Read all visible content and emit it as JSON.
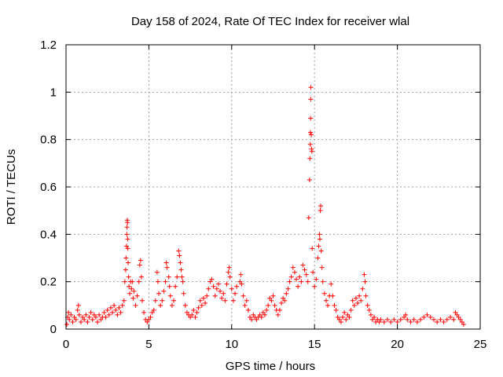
{
  "chart_data": {
    "type": "scatter",
    "title": "Day 158 of 2024, Rate Of TEC Index for receiver wlal",
    "xlabel": "GPS time / hours",
    "ylabel": "ROTI / TECUs",
    "xlim": [
      0,
      25
    ],
    "ylim": [
      0,
      1.2
    ],
    "grid": true,
    "marker": "+",
    "color": "#ff0000",
    "x_ticks": [
      {
        "value": 0,
        "label": "0"
      },
      {
        "value": 5,
        "label": "5"
      },
      {
        "value": 10,
        "label": "10"
      },
      {
        "value": 15,
        "label": "15"
      },
      {
        "value": 20,
        "label": "20"
      },
      {
        "value": 25,
        "label": "25"
      }
    ],
    "y_ticks": [
      {
        "value": 0,
        "label": "0"
      },
      {
        "value": 0.2,
        "label": "0.2"
      },
      {
        "value": 0.4,
        "label": "0.4"
      },
      {
        "value": 0.6,
        "label": "0.6"
      },
      {
        "value": 0.8,
        "label": "0.8"
      },
      {
        "value": 1.0,
        "label": "1"
      },
      {
        "value": 1.2,
        "label": "1.2"
      }
    ],
    "series": [
      {
        "name": "ROTI",
        "points": [
          [
            0.05,
            0.02
          ],
          [
            0.1,
            0.05
          ],
          [
            0.15,
            0.07
          ],
          [
            0.2,
            0.04
          ],
          [
            0.3,
            0.06
          ],
          [
            0.4,
            0.03
          ],
          [
            0.5,
            0.05
          ],
          [
            0.6,
            0.04
          ],
          [
            0.7,
            0.08
          ],
          [
            0.75,
            0.1
          ],
          [
            0.8,
            0.06
          ],
          [
            0.9,
            0.03
          ],
          [
            1.0,
            0.05
          ],
          [
            1.1,
            0.04
          ],
          [
            1.2,
            0.06
          ],
          [
            1.3,
            0.03
          ],
          [
            1.4,
            0.05
          ],
          [
            1.5,
            0.07
          ],
          [
            1.6,
            0.04
          ],
          [
            1.7,
            0.06
          ],
          [
            1.8,
            0.05
          ],
          [
            1.9,
            0.03
          ],
          [
            2.0,
            0.06
          ],
          [
            2.1,
            0.04
          ],
          [
            2.2,
            0.05
          ],
          [
            2.3,
            0.07
          ],
          [
            2.4,
            0.05
          ],
          [
            2.5,
            0.08
          ],
          [
            2.6,
            0.06
          ],
          [
            2.7,
            0.09
          ],
          [
            2.8,
            0.07
          ],
          [
            2.9,
            0.1
          ],
          [
            3.0,
            0.08
          ],
          [
            3.1,
            0.06
          ],
          [
            3.2,
            0.09
          ],
          [
            3.3,
            0.07
          ],
          [
            3.4,
            0.1
          ],
          [
            3.5,
            0.12
          ],
          [
            3.55,
            0.2
          ],
          [
            3.6,
            0.25
          ],
          [
            3.62,
            0.3
          ],
          [
            3.65,
            0.35
          ],
          [
            3.67,
            0.4
          ],
          [
            3.68,
            0.43
          ],
          [
            3.7,
            0.46
          ],
          [
            3.71,
            0.45
          ],
          [
            3.72,
            0.38
          ],
          [
            3.73,
            0.34
          ],
          [
            3.75,
            0.28
          ],
          [
            3.78,
            0.22
          ],
          [
            3.8,
            0.18
          ],
          [
            3.85,
            0.15
          ],
          [
            3.9,
            0.2
          ],
          [
            3.95,
            0.17
          ],
          [
            4.0,
            0.2
          ],
          [
            4.05,
            0.13
          ],
          [
            4.1,
            0.16
          ],
          [
            4.2,
            0.1
          ],
          [
            4.3,
            0.14
          ],
          [
            4.4,
            0.2
          ],
          [
            4.45,
            0.27
          ],
          [
            4.5,
            0.29
          ],
          [
            4.55,
            0.22
          ],
          [
            4.6,
            0.12
          ],
          [
            4.7,
            0.07
          ],
          [
            4.8,
            0.04
          ],
          [
            4.9,
            0.03
          ],
          [
            5.0,
            0.04
          ],
          [
            5.1,
            0.05
          ],
          [
            5.2,
            0.07
          ],
          [
            5.3,
            0.08
          ],
          [
            5.4,
            0.12
          ],
          [
            5.5,
            0.24
          ],
          [
            5.55,
            0.2
          ],
          [
            5.6,
            0.15
          ],
          [
            5.7,
            0.1
          ],
          [
            5.8,
            0.12
          ],
          [
            5.9,
            0.16
          ],
          [
            6.0,
            0.2
          ],
          [
            6.05,
            0.28
          ],
          [
            6.1,
            0.26
          ],
          [
            6.2,
            0.22
          ],
          [
            6.25,
            0.18
          ],
          [
            6.3,
            0.14
          ],
          [
            6.4,
            0.1
          ],
          [
            6.5,
            0.12
          ],
          [
            6.6,
            0.18
          ],
          [
            6.7,
            0.22
          ],
          [
            6.8,
            0.33
          ],
          [
            6.85,
            0.31
          ],
          [
            6.9,
            0.28
          ],
          [
            6.95,
            0.25
          ],
          [
            7.0,
            0.22
          ],
          [
            7.05,
            0.2
          ],
          [
            7.1,
            0.15
          ],
          [
            7.2,
            0.1
          ],
          [
            7.3,
            0.07
          ],
          [
            7.4,
            0.06
          ],
          [
            7.5,
            0.05
          ],
          [
            7.6,
            0.06
          ],
          [
            7.7,
            0.08
          ],
          [
            7.8,
            0.05
          ],
          [
            7.9,
            0.07
          ],
          [
            8.0,
            0.09
          ],
          [
            8.1,
            0.12
          ],
          [
            8.2,
            0.1
          ],
          [
            8.3,
            0.13
          ],
          [
            8.4,
            0.11
          ],
          [
            8.5,
            0.14
          ],
          [
            8.6,
            0.17
          ],
          [
            8.7,
            0.2
          ],
          [
            8.8,
            0.21
          ],
          [
            8.9,
            0.18
          ],
          [
            9.0,
            0.14
          ],
          [
            9.1,
            0.17
          ],
          [
            9.2,
            0.19
          ],
          [
            9.3,
            0.16
          ],
          [
            9.4,
            0.13
          ],
          [
            9.5,
            0.15
          ],
          [
            9.6,
            0.12
          ],
          [
            9.7,
            0.19
          ],
          [
            9.8,
            0.24
          ],
          [
            9.85,
            0.26
          ],
          [
            9.9,
            0.22
          ],
          [
            10.0,
            0.17
          ],
          [
            10.1,
            0.12
          ],
          [
            10.2,
            0.15
          ],
          [
            10.3,
            0.18
          ],
          [
            10.5,
            0.2
          ],
          [
            10.55,
            0.23
          ],
          [
            10.6,
            0.19
          ],
          [
            10.7,
            0.14
          ],
          [
            10.8,
            0.1
          ],
          [
            10.9,
            0.12
          ],
          [
            11.0,
            0.08
          ],
          [
            11.1,
            0.05
          ],
          [
            11.2,
            0.04
          ],
          [
            11.3,
            0.06
          ],
          [
            11.4,
            0.05
          ],
          [
            11.5,
            0.04
          ],
          [
            11.6,
            0.05
          ],
          [
            11.7,
            0.06
          ],
          [
            11.8,
            0.05
          ],
          [
            11.9,
            0.07
          ],
          [
            12.0,
            0.06
          ],
          [
            12.1,
            0.08
          ],
          [
            12.2,
            0.1
          ],
          [
            12.3,
            0.13
          ],
          [
            12.4,
            0.12
          ],
          [
            12.5,
            0.14
          ],
          [
            12.6,
            0.1
          ],
          [
            12.7,
            0.08
          ],
          [
            12.8,
            0.06
          ],
          [
            12.9,
            0.08
          ],
          [
            13.0,
            0.11
          ],
          [
            13.1,
            0.13
          ],
          [
            13.2,
            0.12
          ],
          [
            13.3,
            0.15
          ],
          [
            13.4,
            0.17
          ],
          [
            13.5,
            0.2
          ],
          [
            13.6,
            0.22
          ],
          [
            13.7,
            0.26
          ],
          [
            13.8,
            0.24
          ],
          [
            13.9,
            0.21
          ],
          [
            14.0,
            0.18
          ],
          [
            14.1,
            0.22
          ],
          [
            14.2,
            0.2
          ],
          [
            14.3,
            0.27
          ],
          [
            14.4,
            0.25
          ],
          [
            14.5,
            0.23
          ],
          [
            14.6,
            0.2
          ],
          [
            14.65,
            0.47
          ],
          [
            14.7,
            0.63
          ],
          [
            14.72,
            0.72
          ],
          [
            14.74,
            0.78
          ],
          [
            14.75,
            0.83
          ],
          [
            14.76,
            0.89
          ],
          [
            14.77,
            0.97
          ],
          [
            14.78,
            1.02
          ],
          [
            14.8,
            0.82
          ],
          [
            14.82,
            0.76
          ],
          [
            14.84,
            0.75
          ],
          [
            14.86,
            0.34
          ],
          [
            14.9,
            0.24
          ],
          [
            15.0,
            0.18
          ],
          [
            15.1,
            0.21
          ],
          [
            15.2,
            0.3
          ],
          [
            15.25,
            0.35
          ],
          [
            15.3,
            0.4
          ],
          [
            15.32,
            0.38
          ],
          [
            15.35,
            0.5
          ],
          [
            15.37,
            0.52
          ],
          [
            15.4,
            0.33
          ],
          [
            15.45,
            0.26
          ],
          [
            15.5,
            0.2
          ],
          [
            15.6,
            0.15
          ],
          [
            15.7,
            0.12
          ],
          [
            15.8,
            0.1
          ],
          [
            15.9,
            0.14
          ],
          [
            16.0,
            0.19
          ],
          [
            16.1,
            0.14
          ],
          [
            16.2,
            0.1
          ],
          [
            16.3,
            0.08
          ],
          [
            16.4,
            0.05
          ],
          [
            16.5,
            0.04
          ],
          [
            16.6,
            0.03
          ],
          [
            16.7,
            0.05
          ],
          [
            16.8,
            0.07
          ],
          [
            16.9,
            0.04
          ],
          [
            17.0,
            0.06
          ],
          [
            17.1,
            0.05
          ],
          [
            17.2,
            0.08
          ],
          [
            17.3,
            0.12
          ],
          [
            17.4,
            0.1
          ],
          [
            17.5,
            0.13
          ],
          [
            17.6,
            0.11
          ],
          [
            17.7,
            0.14
          ],
          [
            17.8,
            0.12
          ],
          [
            17.9,
            0.17
          ],
          [
            18.0,
            0.23
          ],
          [
            18.05,
            0.2
          ],
          [
            18.1,
            0.14
          ],
          [
            18.2,
            0.1
          ],
          [
            18.3,
            0.08
          ],
          [
            18.4,
            0.06
          ],
          [
            18.5,
            0.04
          ],
          [
            18.6,
            0.05
          ],
          [
            18.7,
            0.03
          ],
          [
            18.8,
            0.04
          ],
          [
            18.9,
            0.03
          ],
          [
            19.0,
            0.04
          ],
          [
            19.2,
            0.03
          ],
          [
            19.4,
            0.04
          ],
          [
            19.6,
            0.03
          ],
          [
            19.8,
            0.04
          ],
          [
            20.0,
            0.03
          ],
          [
            20.2,
            0.04
          ],
          [
            20.4,
            0.05
          ],
          [
            20.5,
            0.06
          ],
          [
            20.6,
            0.04
          ],
          [
            20.8,
            0.03
          ],
          [
            21.0,
            0.04
          ],
          [
            21.2,
            0.03
          ],
          [
            21.4,
            0.04
          ],
          [
            21.6,
            0.05
          ],
          [
            21.8,
            0.06
          ],
          [
            22.0,
            0.05
          ],
          [
            22.2,
            0.04
          ],
          [
            22.4,
            0.03
          ],
          [
            22.6,
            0.04
          ],
          [
            22.8,
            0.03
          ],
          [
            23.0,
            0.04
          ],
          [
            23.2,
            0.05
          ],
          [
            23.4,
            0.04
          ],
          [
            23.5,
            0.07
          ],
          [
            23.6,
            0.06
          ],
          [
            23.7,
            0.05
          ],
          [
            23.8,
            0.04
          ],
          [
            23.9,
            0.03
          ],
          [
            24.0,
            0.02
          ]
        ]
      }
    ]
  }
}
